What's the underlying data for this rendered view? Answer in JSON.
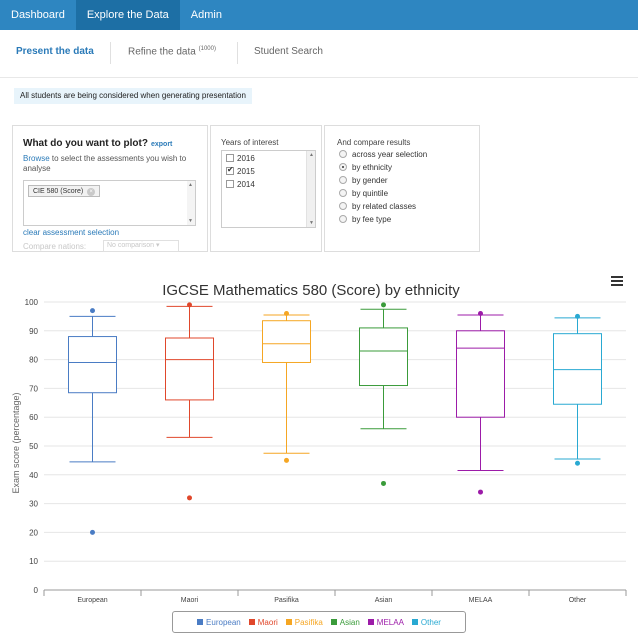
{
  "topnav": {
    "items": [
      {
        "label": "Dashboard"
      },
      {
        "label": "Explore the Data"
      },
      {
        "label": "Admin"
      }
    ]
  },
  "subnav": {
    "present": "Present the data",
    "refine": "Refine the data",
    "refine_count": "(1000)",
    "student_search": "Student Search"
  },
  "notice": "All students are being considered when generating presentation",
  "plot_panel": {
    "title": "What do you want to plot?",
    "export": "export",
    "browse_link": "Browse",
    "browse_text": " to select the assessments you wish to analyse",
    "assessment_tag": "CIE 580 (Score)",
    "tag_remove": "×",
    "clear_link": "clear assessment selection",
    "compare_label": "Compare nations:",
    "compare_value": "No comparison ▾"
  },
  "years_panel": {
    "title": "Years of interest",
    "years": [
      "2016",
      "2015",
      "2014"
    ],
    "selected": "2015"
  },
  "compare_panel": {
    "title": "And compare results",
    "options": [
      "across year selection",
      "by ethnicity",
      "by gender",
      "by quintile",
      "by related classes",
      "by fee type"
    ],
    "selected": "by ethnicity"
  },
  "icons": {
    "menu": "hamburger-menu-icon",
    "remove": "remove-tag-icon",
    "scroll_up": "▲",
    "scroll_down": "▼"
  },
  "chart_data": {
    "type": "boxplot",
    "title": "IGCSE Mathematics 580 (Score) by ethnicity",
    "ylabel": "Exam score (percentage)",
    "xlabel": "",
    "ylim": [
      0,
      100
    ],
    "yticks": [
      0,
      10,
      20,
      30,
      40,
      50,
      60,
      70,
      80,
      90,
      100
    ],
    "grid": true,
    "legend_position": "bottom",
    "categories": [
      "European",
      "Maori",
      "Pasifika",
      "Asian",
      "MELAA",
      "Other"
    ],
    "colors": [
      "#4a7cc4",
      "#e0472b",
      "#f5a623",
      "#3a9b3a",
      "#9c1ba8",
      "#29a9d2"
    ],
    "series": [
      {
        "name": "European",
        "min": 44.5,
        "q1": 68.5,
        "median": 79,
        "q3": 88,
        "max": 95,
        "outliers": [
          97,
          20
        ]
      },
      {
        "name": "Maori",
        "min": 53,
        "q1": 66,
        "median": 80,
        "q3": 87.5,
        "max": 98.5,
        "outliers": [
          99,
          32
        ]
      },
      {
        "name": "Pasifika",
        "min": 47.5,
        "q1": 79,
        "median": 85.5,
        "q3": 93.5,
        "max": 95.5,
        "outliers": [
          96,
          45
        ]
      },
      {
        "name": "Asian",
        "min": 56,
        "q1": 71,
        "median": 83,
        "q3": 91,
        "max": 97.5,
        "outliers": [
          99,
          37
        ]
      },
      {
        "name": "MELAA",
        "min": 41.5,
        "q1": 60,
        "median": 84,
        "q3": 90,
        "max": 95.5,
        "outliers": [
          96,
          34
        ]
      },
      {
        "name": "Other",
        "min": 45.5,
        "q1": 64.5,
        "median": 76.5,
        "q3": 89,
        "max": 94.5,
        "outliers": [
          95,
          44
        ]
      }
    ]
  }
}
